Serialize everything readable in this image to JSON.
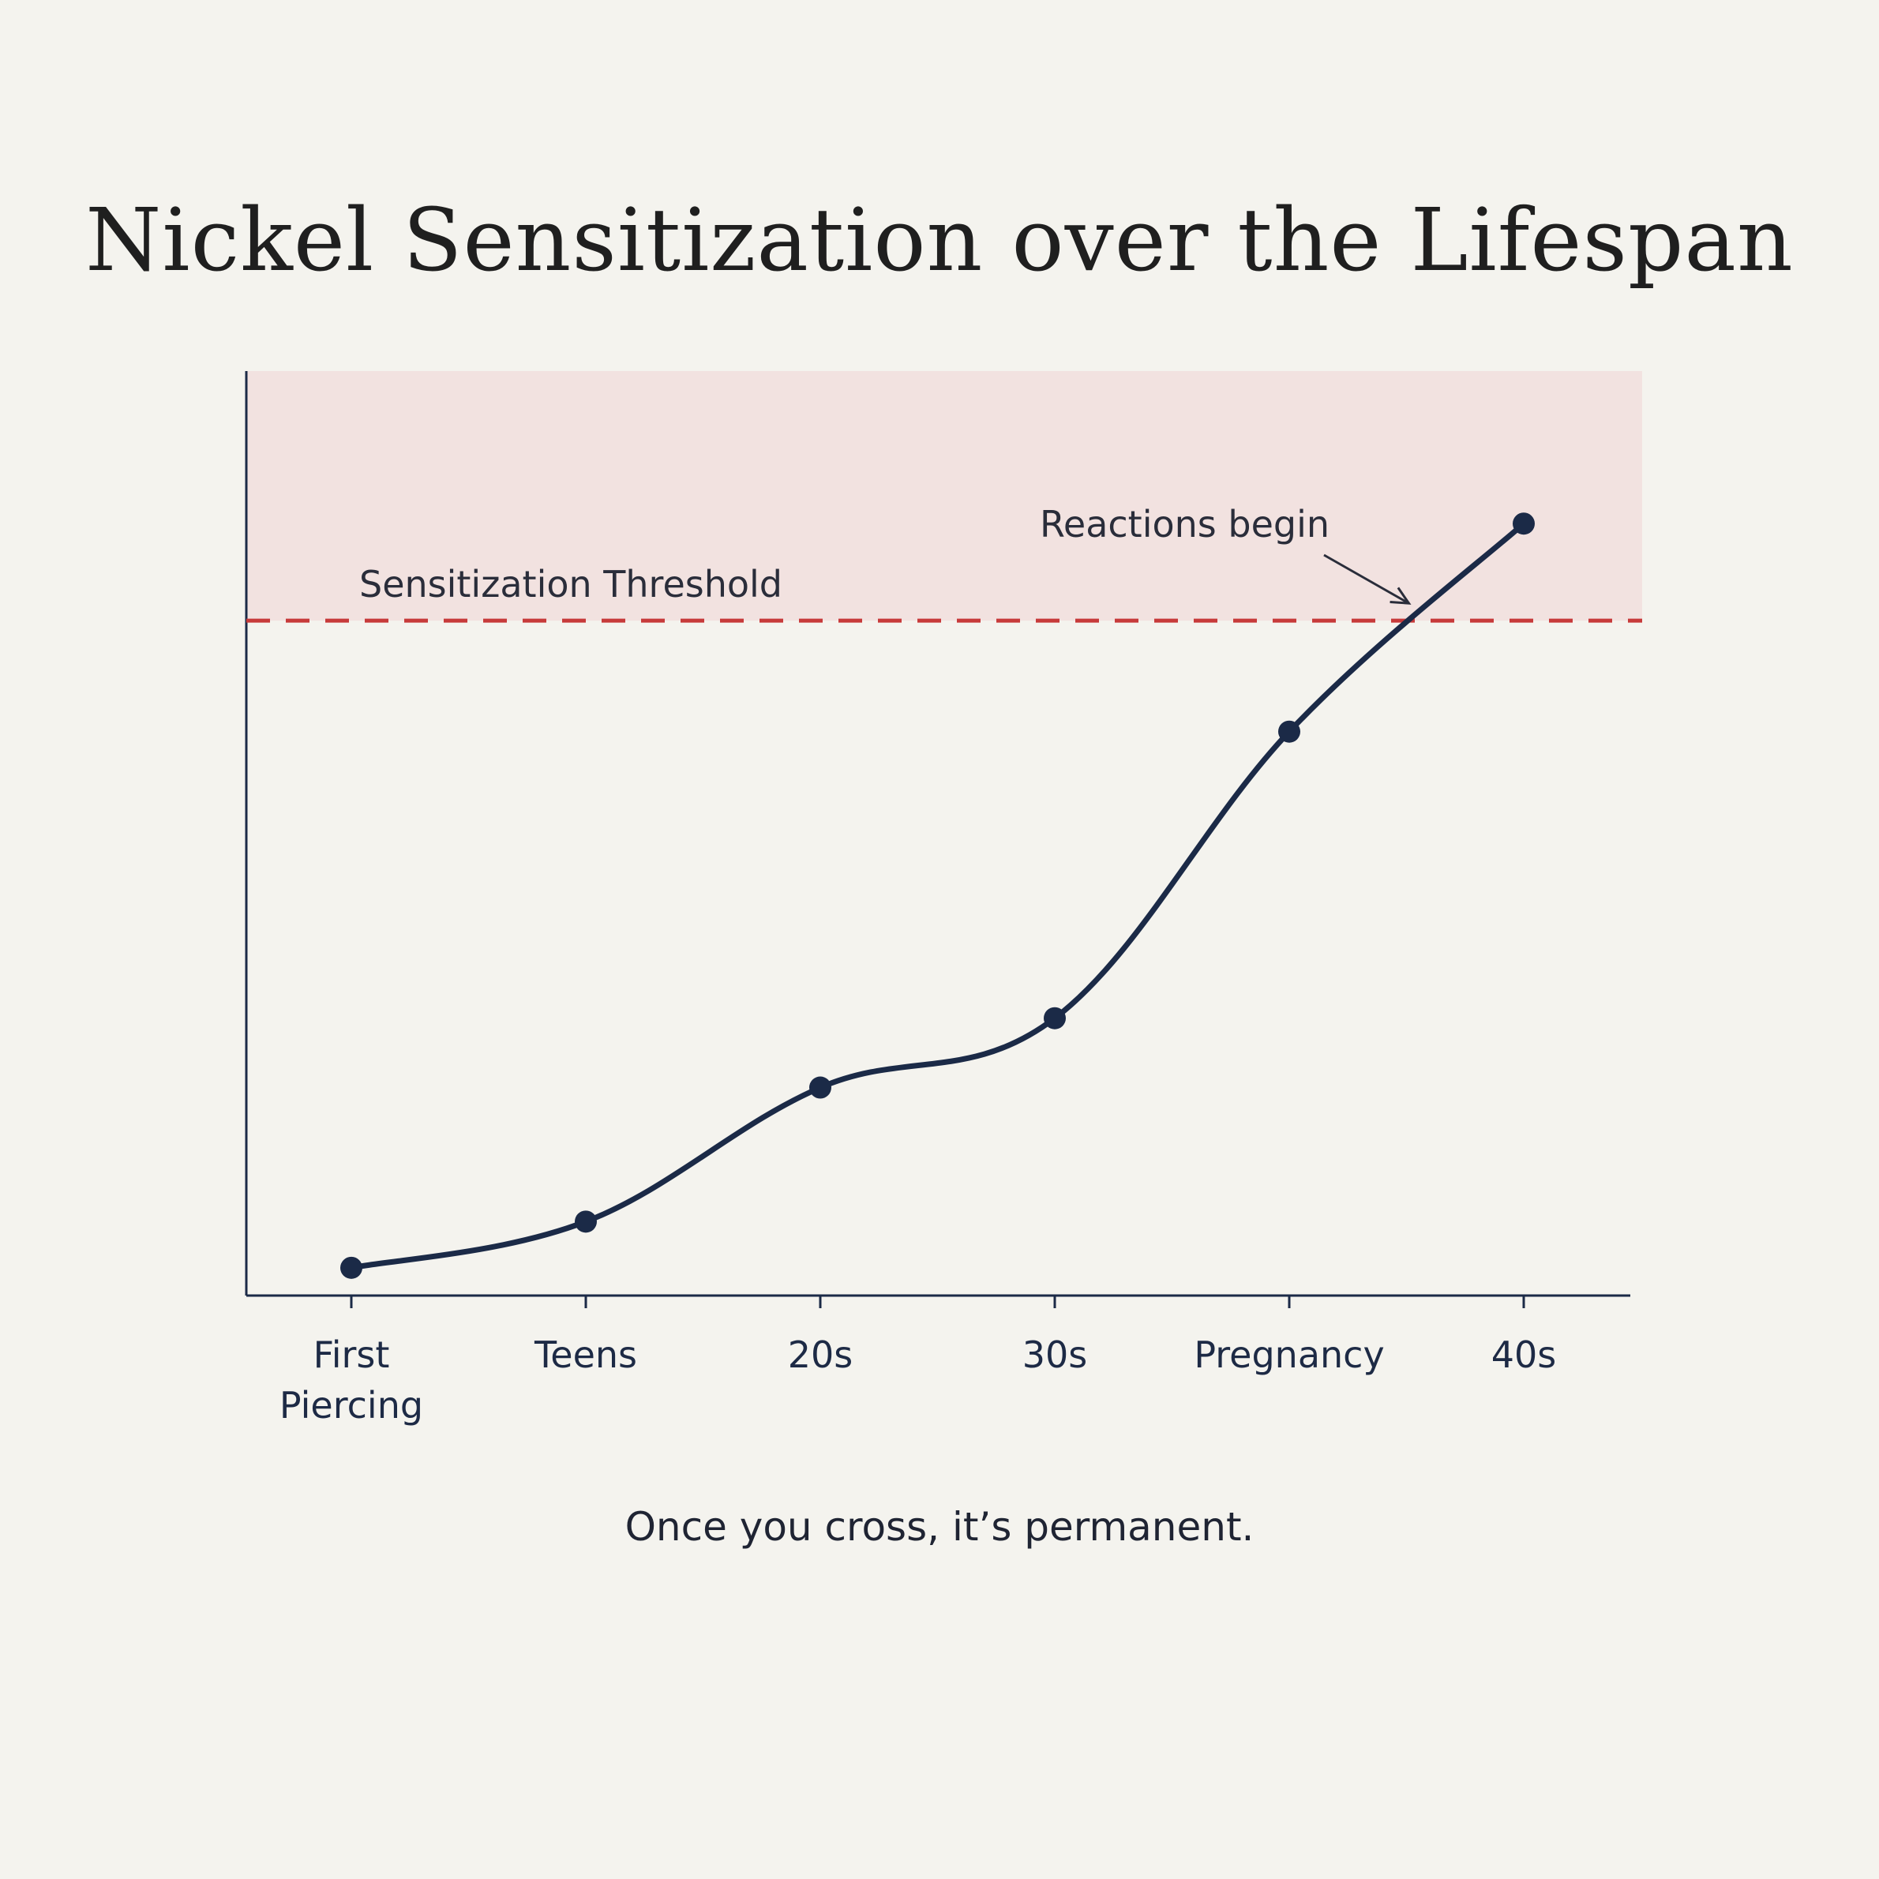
{
  "colors": {
    "background": "#f4f3ee",
    "line": "#1b2a47",
    "threshold": "#c73a3a",
    "zone": "#f2e2e0"
  },
  "chart_data": {
    "type": "line",
    "title": "Nickel Sensitization over the Lifespan",
    "xlabel": "",
    "ylabel": "",
    "categories": [
      "First Piercing",
      "Teens",
      "20s",
      "30s",
      "Pregnancy",
      "40s"
    ],
    "category_lines": [
      [
        "First",
        "Piercing"
      ],
      [
        "Teens"
      ],
      [
        "20s"
      ],
      [
        "30s"
      ],
      [
        "Pregnancy"
      ],
      [
        "40s"
      ]
    ],
    "series": [
      {
        "values": [
          3,
          8,
          22.5,
          30,
          61,
          83.5
        ]
      }
    ],
    "ylim": [
      0,
      100
    ],
    "y_tick_labels": false,
    "grid": false,
    "threshold": {
      "value": 73,
      "label": "Sensitization Threshold",
      "style": "dashed"
    },
    "shaded_region": {
      "from": 73,
      "to": 100
    },
    "annotations": [
      {
        "text": "Reactions begin",
        "x_between": [
          "Pregnancy",
          "40s"
        ],
        "y": 73
      }
    ],
    "caption": "Once you cross, it’s permanent."
  }
}
